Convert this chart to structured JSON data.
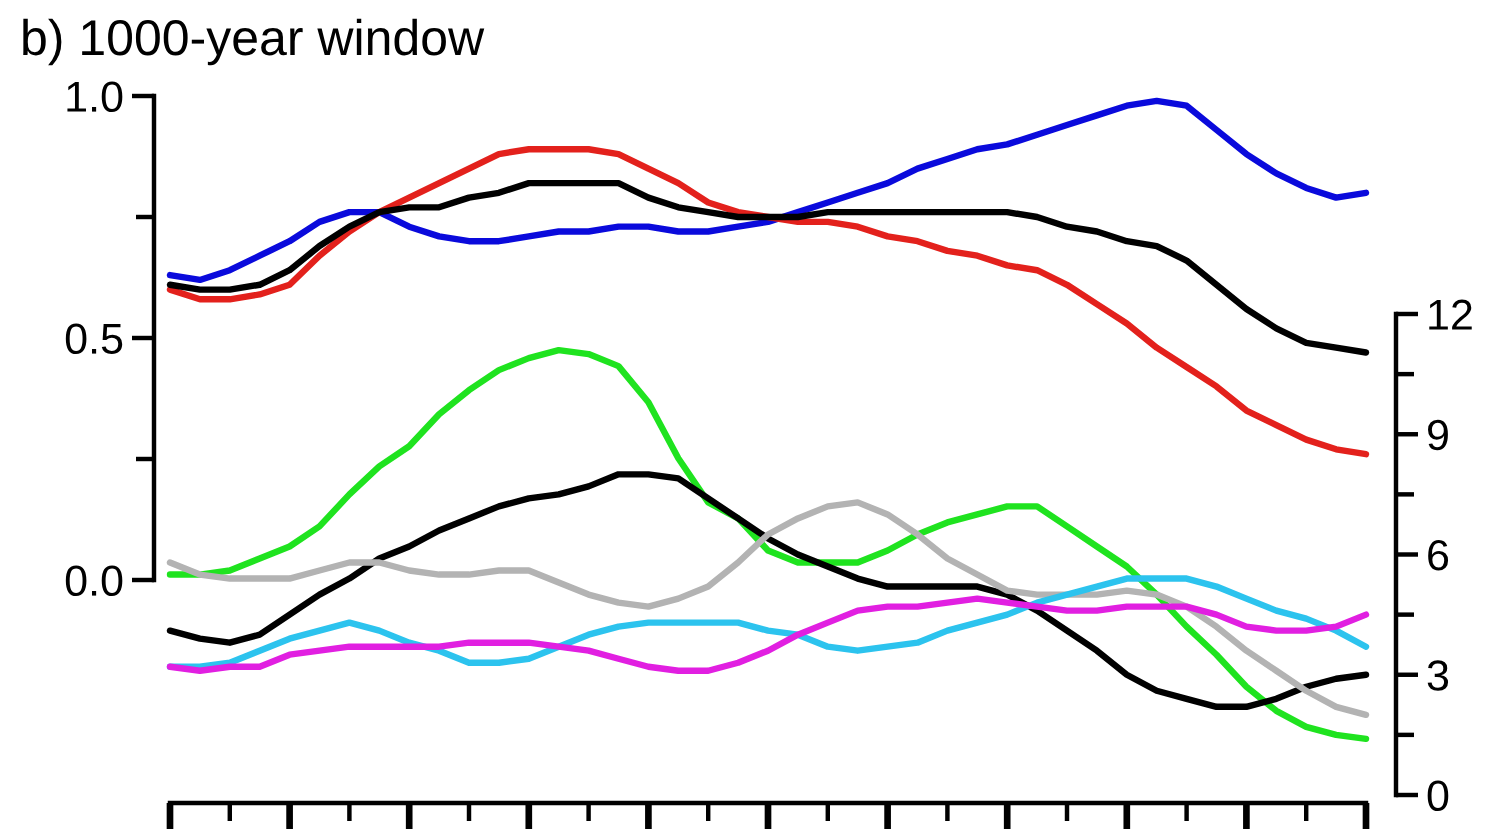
{
  "chart_data": [
    {
      "type": "line",
      "title": "b) 1000-year window",
      "categories": [
        null,
        null,
        null,
        null,
        null,
        null,
        null,
        null,
        null,
        null,
        null,
        null,
        null,
        null,
        null,
        null,
        null,
        null,
        null,
        null,
        null,
        null,
        null,
        null,
        null,
        null,
        null,
        null,
        null,
        null,
        null,
        null,
        null,
        null,
        null,
        null,
        null,
        null,
        null,
        null,
        null
      ],
      "series": [
        {
          "color": "#0a0adc",
          "values": [
            0.63,
            0.62,
            0.64,
            0.67,
            0.7,
            0.74,
            0.76,
            0.76,
            0.73,
            0.71,
            0.7,
            0.7,
            0.71,
            0.72,
            0.72,
            0.73,
            0.73,
            0.72,
            0.72,
            0.73,
            0.74,
            0.76,
            0.78,
            0.8,
            0.82,
            0.85,
            0.87,
            0.89,
            0.9,
            0.92,
            0.94,
            0.96,
            0.98,
            0.99,
            0.98,
            0.93,
            0.88,
            0.84,
            0.81,
            0.79,
            0.8
          ]
        },
        {
          "color": "#e3211c",
          "values": [
            0.6,
            0.58,
            0.58,
            0.59,
            0.61,
            0.67,
            0.72,
            0.76,
            0.79,
            0.82,
            0.85,
            0.88,
            0.89,
            0.89,
            0.89,
            0.88,
            0.85,
            0.82,
            0.78,
            0.76,
            0.75,
            0.74,
            0.74,
            0.73,
            0.71,
            0.7,
            0.68,
            0.67,
            0.65,
            0.64,
            0.61,
            0.57,
            0.53,
            0.48,
            0.44,
            0.4,
            0.35,
            0.32,
            0.29,
            0.27,
            0.26
          ]
        },
        {
          "color": "#000000",
          "values": [
            0.61,
            0.6,
            0.6,
            0.61,
            0.64,
            0.69,
            0.73,
            0.76,
            0.77,
            0.77,
            0.79,
            0.8,
            0.82,
            0.82,
            0.82,
            0.82,
            0.79,
            0.77,
            0.76,
            0.75,
            0.75,
            0.75,
            0.76,
            0.76,
            0.76,
            0.76,
            0.76,
            0.76,
            0.76,
            0.75,
            0.73,
            0.72,
            0.7,
            0.69,
            0.66,
            0.61,
            0.56,
            0.52,
            0.49,
            0.48,
            0.47
          ]
        }
      ],
      "ylim": [
        0,
        1
      ],
      "yticks": [
        {
          "value": 0,
          "label": "0.0"
        },
        {
          "value": 0.25,
          "label": null
        },
        {
          "value": 0.5,
          "label": "0.5"
        },
        {
          "value": 0.75,
          "label": null
        },
        {
          "value": 1,
          "label": "1.0"
        }
      ]
    },
    {
      "type": "line",
      "categories": [
        null,
        null,
        null,
        null,
        null,
        null,
        null,
        null,
        null,
        null,
        null,
        null,
        null,
        null,
        null,
        null,
        null,
        null,
        null,
        null,
        null,
        null,
        null,
        null,
        null,
        null,
        null,
        null,
        null,
        null,
        null,
        null,
        null,
        null,
        null,
        null,
        null,
        null,
        null,
        null,
        null
      ],
      "series": [
        {
          "color": "#1fe31f",
          "values": [
            5.5,
            5.5,
            5.6,
            5.9,
            6.2,
            6.7,
            7.5,
            8.2,
            8.7,
            9.5,
            10.1,
            10.6,
            10.9,
            11.1,
            11.0,
            10.7,
            9.8,
            8.4,
            7.3,
            6.9,
            6.1,
            5.8,
            5.8,
            5.8,
            6.1,
            6.5,
            6.8,
            7.0,
            7.2,
            7.2,
            6.7,
            6.2,
            5.7,
            5.0,
            4.2,
            3.5,
            2.7,
            2.1,
            1.7,
            1.5,
            1.4
          ]
        },
        {
          "color": "#000000",
          "values": [
            4.1,
            3.9,
            3.8,
            4.0,
            4.5,
            5.0,
            5.4,
            5.9,
            6.2,
            6.6,
            6.9,
            7.2,
            7.4,
            7.5,
            7.7,
            8.0,
            8.0,
            7.9,
            7.4,
            6.9,
            6.4,
            6.0,
            5.7,
            5.4,
            5.2,
            5.2,
            5.2,
            5.2,
            5.0,
            4.6,
            4.1,
            3.6,
            3.0,
            2.6,
            2.4,
            2.2,
            2.2,
            2.4,
            2.7,
            2.9,
            3.0
          ]
        },
        {
          "color": "#b3b3b3",
          "values": [
            5.8,
            5.5,
            5.4,
            5.4,
            5.4,
            5.6,
            5.8,
            5.8,
            5.6,
            5.5,
            5.5,
            5.6,
            5.6,
            5.3,
            5.0,
            4.8,
            4.7,
            4.9,
            5.2,
            5.8,
            6.5,
            6.9,
            7.2,
            7.3,
            7.0,
            6.5,
            5.9,
            5.5,
            5.1,
            5.0,
            5.0,
            5.0,
            5.1,
            5.0,
            4.7,
            4.2,
            3.6,
            3.1,
            2.6,
            2.2,
            2.0
          ]
        },
        {
          "color": "#2cc3ee",
          "values": [
            3.2,
            3.2,
            3.3,
            3.6,
            3.9,
            4.1,
            4.3,
            4.1,
            3.8,
            3.6,
            3.3,
            3.3,
            3.4,
            3.7,
            4.0,
            4.2,
            4.3,
            4.3,
            4.3,
            4.3,
            4.1,
            4.0,
            3.7,
            3.6,
            3.7,
            3.8,
            4.1,
            4.3,
            4.5,
            4.8,
            5.0,
            5.2,
            5.4,
            5.4,
            5.4,
            5.2,
            4.9,
            4.6,
            4.4,
            4.1,
            3.7
          ]
        },
        {
          "color": "#e11fe1",
          "values": [
            3.2,
            3.1,
            3.2,
            3.2,
            3.5,
            3.6,
            3.7,
            3.7,
            3.7,
            3.7,
            3.8,
            3.8,
            3.8,
            3.7,
            3.6,
            3.4,
            3.2,
            3.1,
            3.1,
            3.3,
            3.6,
            4.0,
            4.3,
            4.6,
            4.7,
            4.7,
            4.8,
            4.9,
            4.8,
            4.7,
            4.6,
            4.6,
            4.7,
            4.7,
            4.7,
            4.5,
            4.2,
            4.1,
            4.1,
            4.2,
            4.5
          ]
        }
      ],
      "ylim": [
        0,
        12
      ],
      "yticks": [
        0,
        {
          "value": 1.5,
          "label": null
        },
        3,
        {
          "value": 4.5,
          "label": null
        },
        6,
        {
          "value": 7.5,
          "label": null
        },
        9,
        {
          "value": 10.5,
          "label": null
        },
        12
      ]
    }
  ]
}
